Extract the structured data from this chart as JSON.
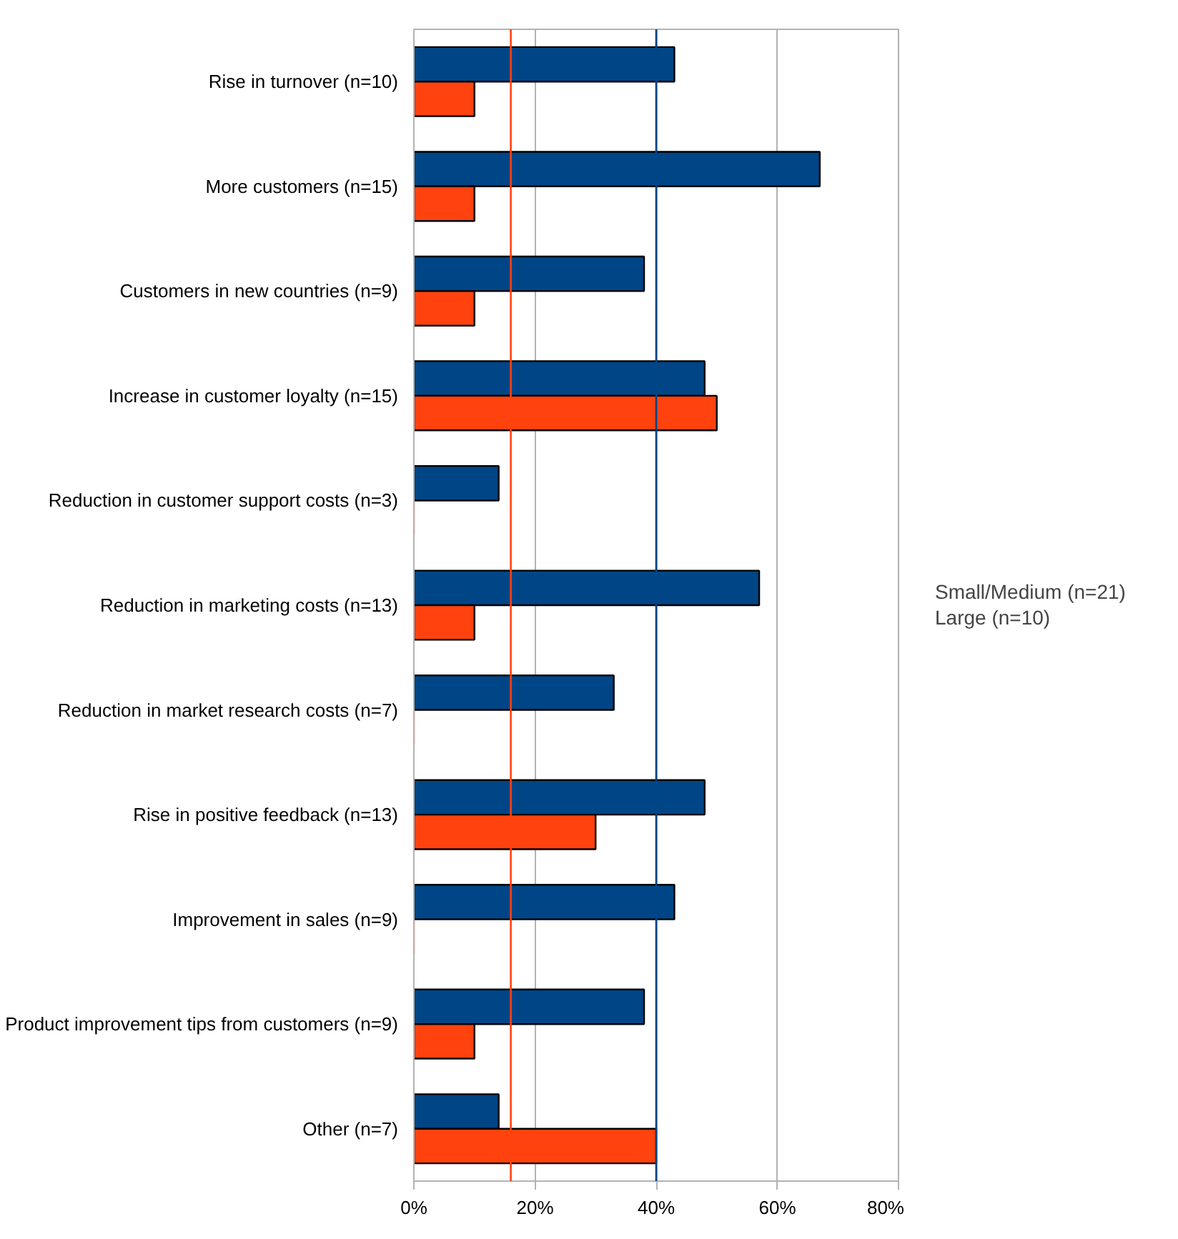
{
  "chart_data": {
    "type": "bar",
    "orientation": "horizontal",
    "categories": [
      "Rise in turnover (n=10)",
      "More customers (n=15)",
      "Customers in new countries (n=9)",
      "Increase in customer loyalty (n=15)",
      "Reduction in customer support costs (n=3)",
      "Reduction in marketing costs (n=13)",
      "Reduction in market research costs (n=7)",
      "Rise in positive feedback (n=13)",
      "Improvement in sales (n=9)",
      "Product improvement tips from customers (n=9)",
      "Other (n=7)"
    ],
    "series": [
      {
        "name": "Small/Medium (n=21)",
        "color": "#004586",
        "values": [
          43,
          67,
          38,
          48,
          14,
          57,
          33,
          48,
          43,
          38,
          14
        ]
      },
      {
        "name": "Large (n=10)",
        "color": "#ff420e",
        "values": [
          10,
          10,
          10,
          50,
          0,
          10,
          0,
          30,
          0,
          10,
          40
        ]
      }
    ],
    "xlim": [
      0,
      80
    ],
    "xticks": [
      {
        "value": 0,
        "label": "0%"
      },
      {
        "value": 20,
        "label": "20%"
      },
      {
        "value": 40,
        "label": "40%"
      },
      {
        "value": 60,
        "label": "60%"
      },
      {
        "value": 80,
        "label": "80%"
      }
    ],
    "ref_lines": [
      {
        "axis": "x",
        "value": 16,
        "color": "#ff420e"
      },
      {
        "axis": "x",
        "value": 40,
        "color": "#004586"
      }
    ],
    "grid": "x",
    "legend": "right"
  }
}
